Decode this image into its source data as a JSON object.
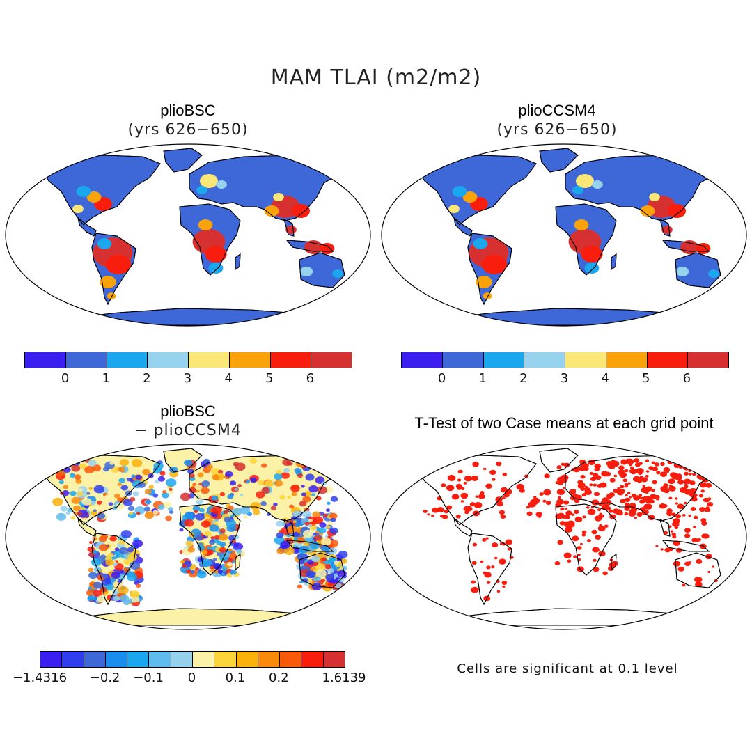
{
  "main_title": "MAM TLAI (m2/m2)",
  "panels": [
    {
      "title": "plioBSC",
      "subtitle": "(yrs 626−650)"
    },
    {
      "title": "plioCCSM4",
      "subtitle": "(yrs 626−650)"
    },
    {
      "title": "plioBSC",
      "subtitle": "− plioCCSM4"
    },
    {
      "title": "T-Test of two Case means at each grid point",
      "subtitle": ""
    }
  ],
  "colorbar_abs": {
    "colors": [
      "#3b1ef0",
      "#3e68d8",
      "#1aa7ee",
      "#96d2ee",
      "#fbe778",
      "#f9a20a",
      "#f91d0d",
      "#d63030"
    ],
    "ticks": [
      "0",
      "1",
      "2",
      "3",
      "4",
      "5",
      "6"
    ]
  },
  "colorbar_diff": {
    "colors": [
      "#3b1ef0",
      "#2f3ff0",
      "#3e68d8",
      "#1a8eee",
      "#1aa7ee",
      "#60bcec",
      "#96d2ee",
      "#fbf2a8",
      "#fbd43a",
      "#f9b20a",
      "#f98a0a",
      "#f95a0a",
      "#f91d0d",
      "#d63030"
    ],
    "ticks": [
      "−1.4316",
      "−0.2",
      "−0.1",
      "0",
      "0.1",
      "0.2",
      "1.6139"
    ]
  },
  "significance_note": "Cells are significant at 0.1 level",
  "colors": {
    "land_low": "#3e68d8",
    "land_high": "#d63030",
    "diff_neutral": "#fbf2a8",
    "significant": "#f91d0d"
  }
}
